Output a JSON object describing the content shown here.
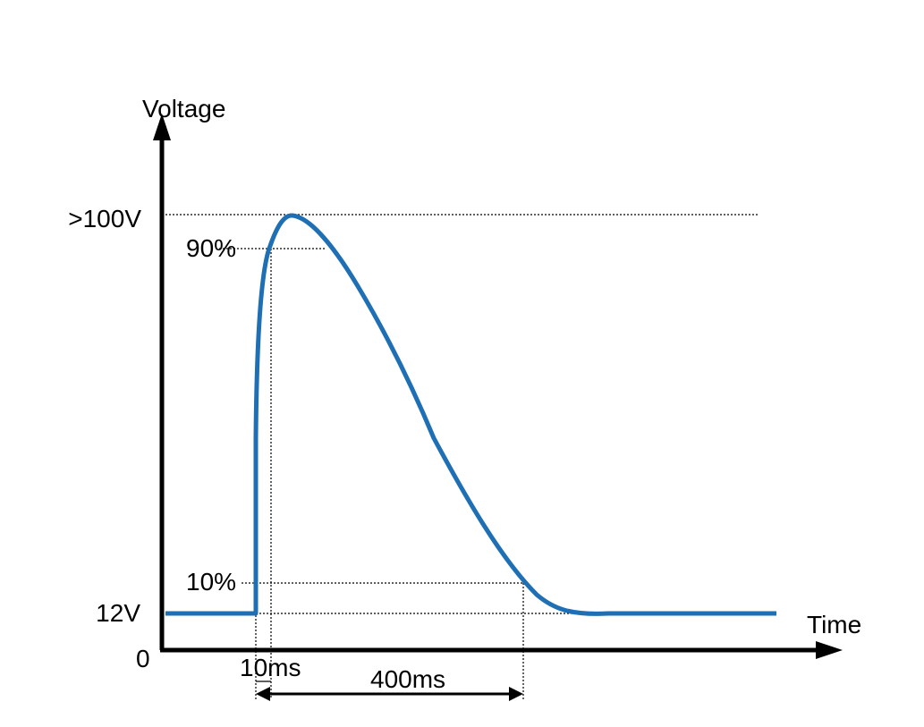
{
  "labels": {
    "y_axis": "Voltage",
    "x_axis": "Time",
    "peak": ">100V",
    "ninety": "90%",
    "ten": "10%",
    "base": "12V",
    "origin": "0",
    "rise": "10ms",
    "duration": "400ms"
  }
}
